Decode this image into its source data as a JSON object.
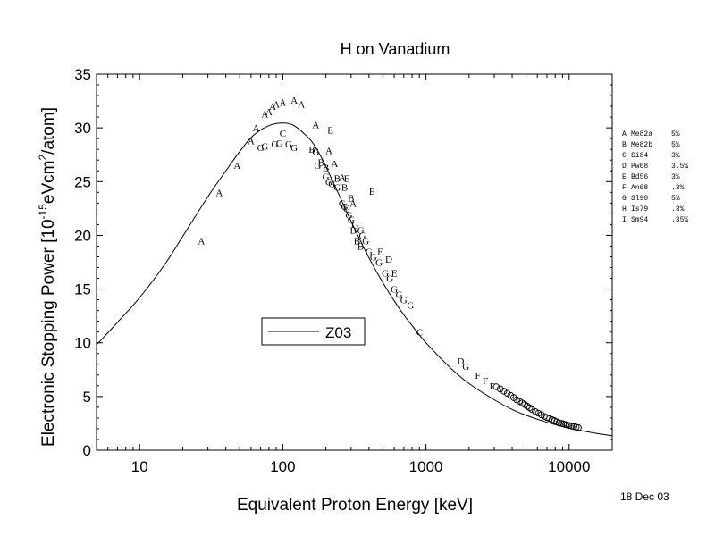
{
  "chart_data": {
    "type": "scatter",
    "title": "H on Vanadium",
    "xlabel": "Equivalent Proton Energy [keV]",
    "ylabel": {
      "pre": "Electronic Stopping Power [10",
      "sup1": "-15",
      "mid": "eVcm",
      "sup2": "2",
      "post": "/atom]"
    },
    "x_scale": "log",
    "xlim": [
      5,
      20000
    ],
    "ylim": [
      0,
      35
    ],
    "x_ticks": [
      10,
      100,
      1000,
      10000
    ],
    "x_tick_labels": [
      "10",
      "100",
      "1000",
      "10000"
    ],
    "y_ticks": [
      0,
      5,
      10,
      15,
      20,
      25,
      30,
      35
    ],
    "y_tick_labels": [
      "0",
      "5",
      "10",
      "15",
      "20",
      "25",
      "30",
      "35"
    ],
    "grid": false,
    "legend": {
      "label": "Z03",
      "placement": "center-left"
    },
    "date_stamp": "18 Dec 03",
    "references": [
      {
        "letter": "A",
        "code": "Me82a",
        "error": "5%"
      },
      {
        "letter": "B",
        "code": "Me82b",
        "error": "5%"
      },
      {
        "letter": "C",
        "code": "Si84",
        "error": "3%"
      },
      {
        "letter": "D",
        "code": "Pw68",
        "error": "3.5%"
      },
      {
        "letter": "E",
        "code": "Bd56",
        "error": "3%"
      },
      {
        "letter": "F",
        "code": "An68",
        "error": ".3%"
      },
      {
        "letter": "G",
        "code": "Sl90",
        "error": "5%"
      },
      {
        "letter": "H",
        "code": "Is79",
        "error": ".3%"
      },
      {
        "letter": "I",
        "code": "Sm94",
        "error": ".35%"
      }
    ],
    "curve": {
      "name": "Z03",
      "x": [
        5,
        7,
        10,
        15,
        20,
        30,
        40,
        50,
        60,
        70,
        80,
        90,
        100,
        110,
        120,
        140,
        160,
        180,
        200,
        250,
        300,
        400,
        500,
        600,
        700,
        800,
        1000,
        1500,
        2000,
        3000,
        4000,
        5000,
        7000,
        10000,
        15000,
        20000
      ],
      "y": [
        9.8,
        11.9,
        14.2,
        17.3,
        19.9,
        23.6,
        26.0,
        27.8,
        29.1,
        29.8,
        30.2,
        30.4,
        30.45,
        30.4,
        30.2,
        29.5,
        28.7,
        27.6,
        26.4,
        23.6,
        21.3,
        17.9,
        15.6,
        13.9,
        12.6,
        11.6,
        10.0,
        7.6,
        6.2,
        4.7,
        3.8,
        3.25,
        2.6,
        2.05,
        1.6,
        1.35
      ]
    },
    "series": [
      {
        "letter": "A",
        "x": [
          27,
          36,
          48,
          60,
          65,
          75,
          80,
          85,
          90,
          100,
          120,
          135,
          170,
          210,
          230,
          260,
          310
        ],
        "y": [
          19.5,
          24,
          26.5,
          28.8,
          30,
          31.3,
          31.5,
          32,
          32.2,
          32.4,
          32.6,
          32.2,
          30.3,
          27.9,
          26.7,
          25.4,
          23
        ]
      },
      {
        "letter": "B",
        "x": [
          160,
          185,
          200,
          240,
          270,
          300,
          310,
          330,
          350
        ],
        "y": [
          28,
          26.8,
          26.3,
          25.3,
          24.5,
          23.5,
          20.5,
          19.5,
          19
        ]
      },
      {
        "letter": "C",
        "x": [
          100,
          900
        ],
        "y": [
          29.5,
          11
        ]
      },
      {
        "letter": "D",
        "x": [
          550,
          1750
        ],
        "y": [
          17.8,
          8.3
        ]
      },
      {
        "letter": "E",
        "x": [
          215,
          280,
          480,
          600
        ],
        "y": [
          29.8,
          25.3,
          18.5,
          16.5
        ]
      },
      {
        "letter": "E2",
        "x": [
          420
        ],
        "y": [
          24.1
        ]
      },
      {
        "letter": "F",
        "x": [
          2300,
          2600,
          2900
        ],
        "y": [
          7,
          6.5,
          6
        ]
      },
      {
        "letter": "G",
        "x": [
          70,
          75,
          88,
          95,
          110,
          120,
          170,
          175,
          200,
          210,
          220,
          240,
          260,
          270,
          280,
          290,
          300,
          320,
          350,
          360,
          380,
          400,
          430,
          470,
          520,
          560,
          600,
          650,
          700,
          780,
          1900
        ],
        "y": [
          28.2,
          28.3,
          28.5,
          28.6,
          28.5,
          28.2,
          27.8,
          26.5,
          25.5,
          25,
          24.8,
          24.5,
          23,
          22.7,
          22.5,
          21.9,
          21.5,
          21,
          20.5,
          20,
          19.5,
          18.5,
          18,
          17.5,
          16.5,
          16,
          15,
          14.5,
          14,
          13.5,
          7.8
        ]
      },
      {
        "letter": "O",
        "x": [
          3100,
          3300,
          3500,
          3700,
          3900,
          4100,
          4300,
          4500,
          4700,
          4900,
          5100,
          5300,
          5500,
          5800,
          6100,
          6400,
          6700,
          7000,
          7300,
          7600,
          7900,
          8200,
          8500,
          8800,
          9100,
          9400,
          9700,
          10000,
          10400,
          10800,
          11200,
          11600
        ],
        "y": [
          5.9,
          5.7,
          5.5,
          5.3,
          5.1,
          4.9,
          4.7,
          4.55,
          4.4,
          4.25,
          4.1,
          3.95,
          3.8,
          3.6,
          3.45,
          3.3,
          3.15,
          3.05,
          2.95,
          2.85,
          2.75,
          2.65,
          2.55,
          2.5,
          2.45,
          2.4,
          2.35,
          2.3,
          2.25,
          2.2,
          2.15,
          2.1
        ]
      }
    ]
  }
}
